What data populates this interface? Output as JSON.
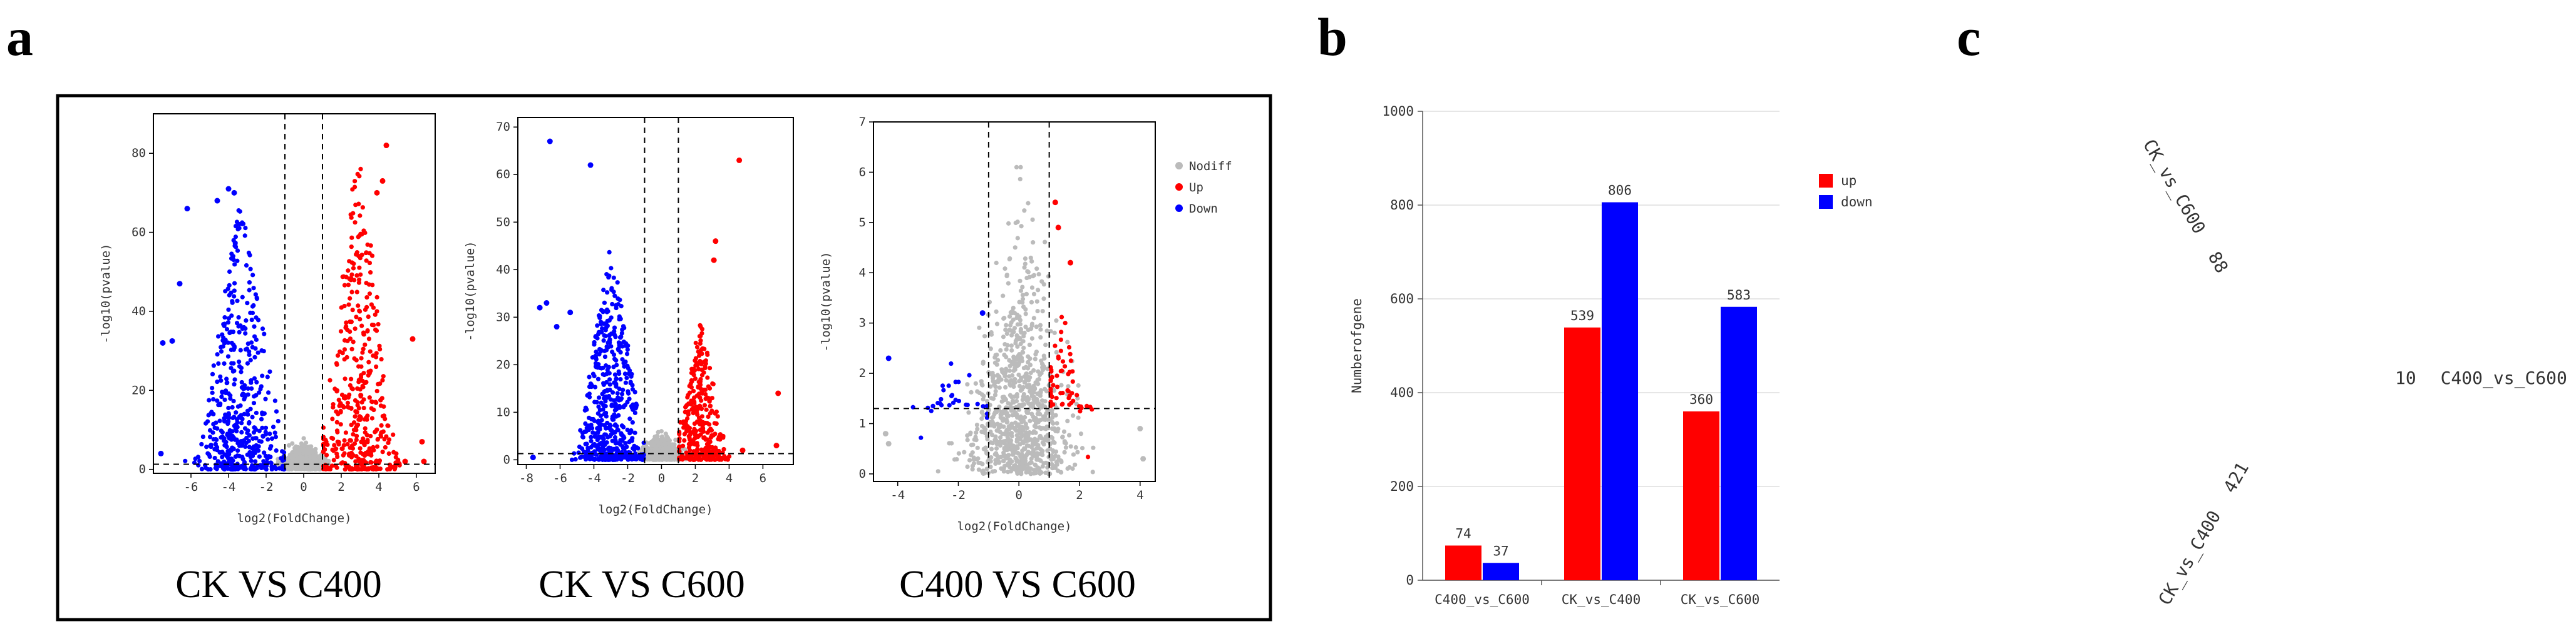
{
  "panels": {
    "a": "a",
    "b": "b",
    "c": "c"
  },
  "colors": {
    "up": "#ff0000",
    "down": "#0000ff",
    "nodiff": "#bbbbbb"
  },
  "chart_data": [
    {
      "type": "scatter",
      "panel": "a",
      "caption": "CK VS C400",
      "xlabel": "log2(FoldChange)",
      "ylabel": "-log10(pvalue)",
      "xlim": [
        -8,
        7
      ],
      "ylim": [
        -1,
        90
      ],
      "xticks": [
        -6,
        -4,
        -2,
        0,
        2,
        4,
        6
      ],
      "yticks": [
        0,
        20,
        40,
        60,
        80
      ],
      "xtick_labels": [
        "-6",
        "-4",
        "-2",
        "0",
        "2",
        "4",
        "6"
      ],
      "ytick_labels": [
        "0",
        "20",
        "40",
        "60",
        "80"
      ],
      "fc_threshold": [
        -1,
        1
      ],
      "p_threshold": 1.3,
      "series": [
        {
          "name": "Down",
          "cx": -3.3,
          "sx": 1.0,
          "minx": -7.5,
          "maxx": -1.05,
          "n": 480,
          "ymax": 72,
          "seed": 11,
          "outliers": [
            [
              -7.5,
              32
            ],
            [
              -7.0,
              32.5
            ],
            [
              -6.2,
              66
            ],
            [
              -4.6,
              68
            ],
            [
              -4.0,
              71
            ],
            [
              -3.7,
              70
            ],
            [
              -7.6,
              4
            ],
            [
              -6.6,
              47
            ]
          ]
        },
        {
          "name": "Up",
          "cx": 2.9,
          "sx": 0.9,
          "minx": 1.05,
          "maxx": 6.6,
          "n": 420,
          "ymax": 84,
          "seed": 23,
          "outliers": [
            [
              4.4,
              82
            ],
            [
              4.2,
              73
            ],
            [
              3.9,
              70
            ],
            [
              5.8,
              33
            ],
            [
              6.3,
              7
            ],
            [
              6.4,
              2
            ],
            [
              5.4,
              2
            ]
          ]
        },
        {
          "name": "Nodiff",
          "cx": 0,
          "sx": 0.55,
          "minx": -1.5,
          "maxx": 1.5,
          "n": 700,
          "ymax": 8,
          "seed": 37,
          "outliers": []
        }
      ]
    },
    {
      "type": "scatter",
      "panel": "a",
      "caption": "CK VS C600",
      "xlabel": "log2(FoldChange)",
      "ylabel": "-log10(pvalue)",
      "xlim": [
        -8.5,
        7.8
      ],
      "ylim": [
        -1,
        72
      ],
      "xticks": [
        -8,
        -6,
        -4,
        -2,
        0,
        2,
        4,
        6
      ],
      "yticks": [
        0,
        10,
        20,
        30,
        40,
        50,
        60,
        70
      ],
      "xtick_labels": [
        "-8",
        "-6",
        "-4",
        "-2",
        "0",
        "2",
        "4",
        "6"
      ],
      "ytick_labels": [
        "0",
        "10",
        "20",
        "30",
        "40",
        "50",
        "60",
        "70"
      ],
      "fc_threshold": [
        -1,
        1
      ],
      "p_threshold": 1.3,
      "series": [
        {
          "name": "Down",
          "cx": -3.0,
          "sx": 0.9,
          "minx": -7.6,
          "maxx": -1.05,
          "n": 520,
          "ymax": 46,
          "seed": 41,
          "outliers": [
            [
              -6.6,
              67
            ],
            [
              -4.2,
              62
            ],
            [
              -7.2,
              32
            ],
            [
              -6.8,
              33
            ],
            [
              -6.2,
              28
            ],
            [
              -5.4,
              31
            ],
            [
              -7.6,
              0.5
            ]
          ]
        },
        {
          "name": "Up",
          "cx": 2.3,
          "sx": 0.7,
          "minx": 1.05,
          "maxx": 6.9,
          "n": 330,
          "ymax": 30,
          "seed": 53,
          "outliers": [
            [
              4.6,
              63
            ],
            [
              3.2,
              46
            ],
            [
              3.1,
              42
            ],
            [
              6.9,
              14
            ],
            [
              6.8,
              3
            ],
            [
              4.8,
              2
            ]
          ]
        },
        {
          "name": "Nodiff",
          "cx": 0,
          "sx": 0.55,
          "minx": -1.5,
          "maxx": 1.5,
          "n": 700,
          "ymax": 6,
          "seed": 61,
          "outliers": []
        }
      ]
    },
    {
      "type": "scatter",
      "panel": "a",
      "caption": "C400 VS C600",
      "xlabel": "log2(FoldChange)",
      "ylabel": "-log10(pvalue)",
      "xlim": [
        -4.8,
        4.5
      ],
      "ylim": [
        -0.15,
        7
      ],
      "xticks": [
        -4,
        -2,
        0,
        2,
        4
      ],
      "yticks": [
        0,
        1,
        2,
        3,
        4,
        5,
        6,
        7
      ],
      "xtick_labels": [
        "-4",
        "-2",
        "0",
        "2",
        "4"
      ],
      "ytick_labels": [
        "0",
        "1",
        "2",
        "3",
        "4",
        "5",
        "6",
        "7"
      ],
      "fc_threshold": [
        -1,
        1
      ],
      "p_threshold": 1.3,
      "legend": [
        "Nodiff",
        "Up",
        "Down"
      ],
      "series": [
        {
          "name": "Down",
          "cx": -2.0,
          "sx": 0.7,
          "minx": -4.3,
          "maxx": -1.05,
          "n": 30,
          "ymin": 1.35,
          "ymax": 2.6,
          "seed": 71,
          "outliers": [
            [
              -4.3,
              2.3
            ],
            [
              -1.2,
              3.2
            ]
          ]
        },
        {
          "name": "Up",
          "cx": 1.4,
          "sx": 0.4,
          "minx": 1.05,
          "maxx": 2.6,
          "n": 60,
          "ymin": 1.35,
          "ymax": 3.6,
          "seed": 83,
          "outliers": [
            [
              1.2,
              5.4
            ],
            [
              1.7,
              4.2
            ],
            [
              1.3,
              4.9
            ]
          ]
        },
        {
          "name": "Nodiff",
          "cx": 0,
          "sx": 0.8,
          "minx": -4.5,
          "maxx": 4.1,
          "n": 900,
          "ymax": 6.1,
          "seed": 97,
          "outliers": [
            [
              -4.3,
              0.6
            ],
            [
              -4.4,
              0.8
            ],
            [
              4.0,
              0.9
            ],
            [
              4.1,
              0.3
            ]
          ]
        }
      ]
    },
    {
      "type": "bar",
      "panel": "b",
      "ylabel": "Numberofgene",
      "ylim": [
        0,
        1000
      ],
      "yticks": [
        0,
        200,
        400,
        600,
        800,
        1000
      ],
      "ytick_labels": [
        "0",
        "200",
        "400",
        "600",
        "800",
        "1000"
      ],
      "categories": [
        "C400_vs_C600",
        "CK_vs_C400",
        "CK_vs_C600"
      ],
      "series": [
        {
          "name": "up",
          "values": [
            74,
            539,
            360
          ]
        },
        {
          "name": "down",
          "values": [
            37,
            806,
            583
          ]
        }
      ],
      "value_labels": [
        [
          "74",
          "539",
          "360"
        ],
        [
          "37",
          "806",
          "583"
        ]
      ]
    }
  ],
  "venn": {
    "label_c600": "CK_vs_C600",
    "count_c600": "88",
    "count_c400_c600": "10",
    "label_c400_c600": "C400_vs_C600",
    "label_c400": "CK_vs_C400",
    "count_c400": "421"
  }
}
